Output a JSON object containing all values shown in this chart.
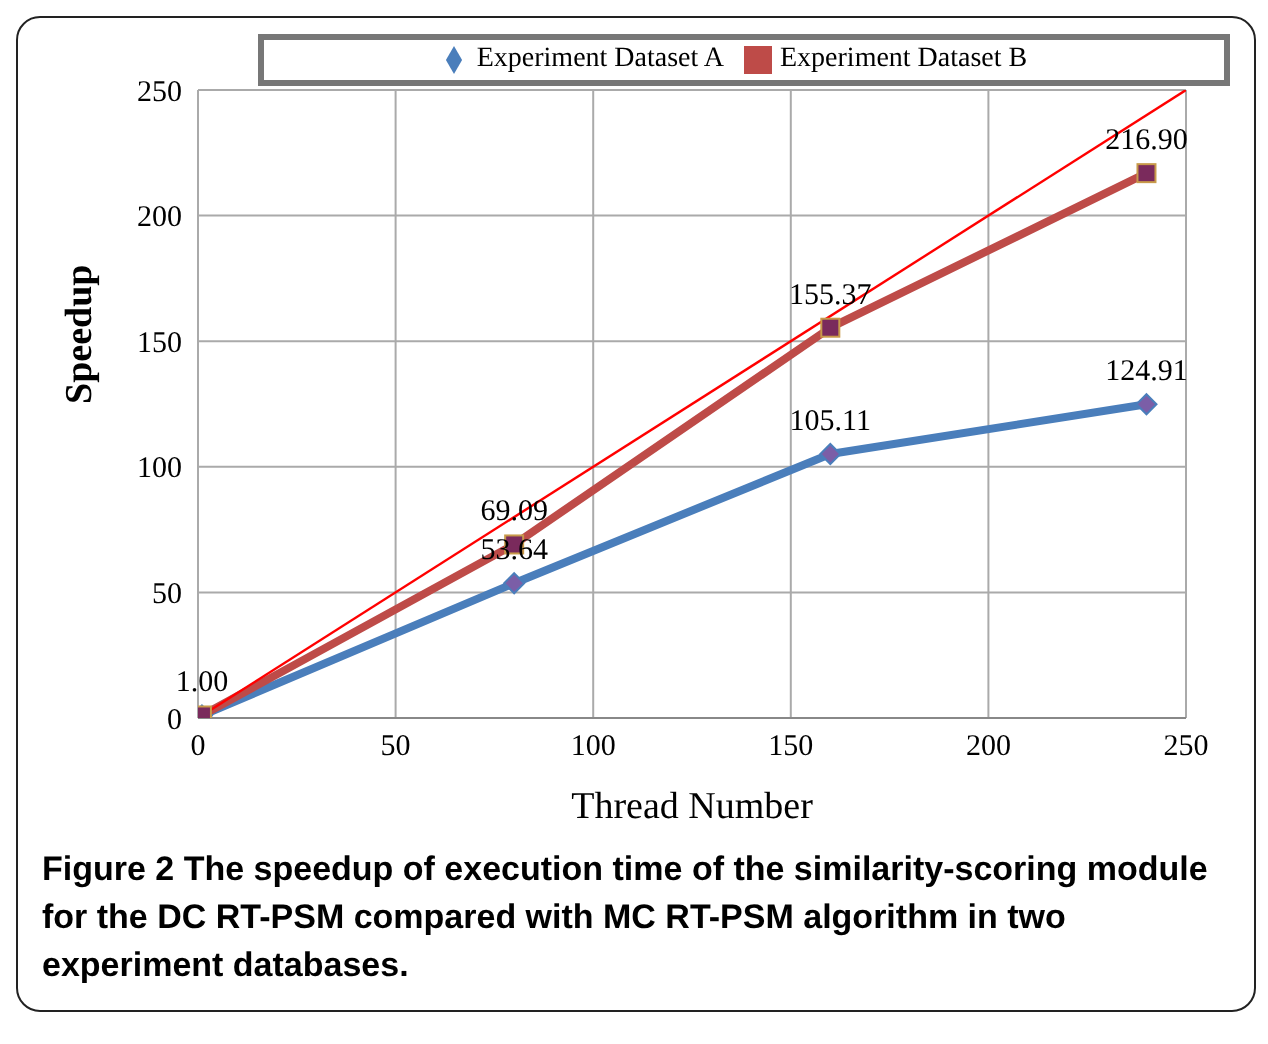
{
  "chart_data": {
    "type": "line",
    "xlabel": "Thread Number",
    "ylabel": "Speedup",
    "xlim": [
      0,
      250
    ],
    "xticks": [
      0,
      50,
      100,
      150,
      200,
      250
    ],
    "ylim": [
      0,
      250
    ],
    "yticks": [
      0,
      50,
      100,
      150,
      200,
      250
    ],
    "grid": true,
    "legend": "top",
    "series": [
      {
        "name": "Experiment Dataset A",
        "color": "#4a7ebb",
        "marker": "diamond",
        "x": [
          1,
          80,
          160,
          240
        ],
        "values": [
          1.0,
          53.64,
          105.11,
          124.91
        ],
        "value_labels": [
          "1.00",
          "53.64",
          "105.11",
          "124.91"
        ]
      },
      {
        "name": "Experiment Dataset B",
        "color": "#be4b48",
        "marker": "square",
        "x": [
          1,
          80,
          160,
          240
        ],
        "values": [
          1.0,
          69.09,
          155.37,
          216.9
        ],
        "value_labels": [
          null,
          "69.09",
          "155.37",
          "216.90"
        ]
      },
      {
        "color": "#ff0000",
        "marker": "none",
        "x": [
          1,
          250
        ],
        "values": [
          1,
          250
        ]
      }
    ],
    "annotations": [
      "Figure 2 The speedup of execution time of the similarity-scoring module for the DC RT-PSM compared with MC RT-PSM algorithm in two experiment databases."
    ]
  }
}
